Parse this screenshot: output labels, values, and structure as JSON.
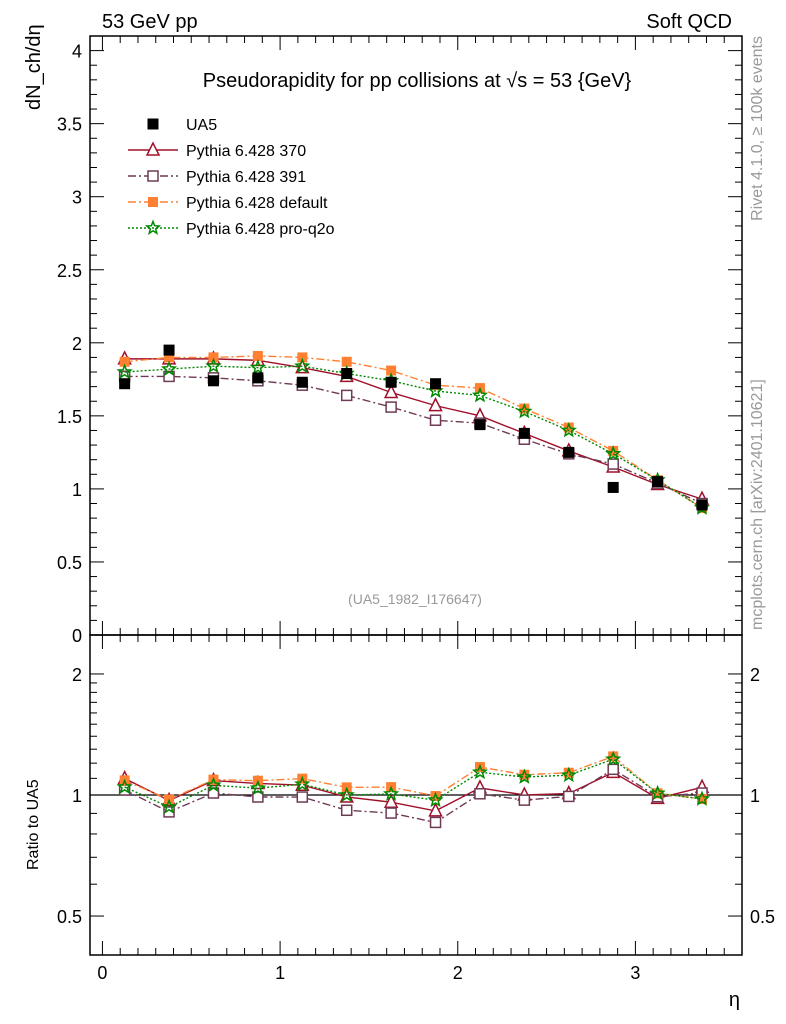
{
  "header": {
    "left": "53 GeV pp",
    "right": "Soft QCD"
  },
  "side_labels": {
    "rivet": "Rivet 4.1.0, ≥ 100k events",
    "mcplots": "mcplots.cern.ch [arXiv:2401.10621]"
  },
  "chart_data": {
    "type": "scatter",
    "title": "Pseudorapidity for pp collisions at √s = 53 {GeV}",
    "watermark": "(UA5_1982_I176647)",
    "xlabel": "η",
    "ylabel": "dN_ch/dη",
    "ratio_ylabel": "Ratio to UA5",
    "xlim": [
      -0.07,
      3.6
    ],
    "ylim": [
      0,
      4.1
    ],
    "ratio_ylim": [
      0.4,
      2.5
    ],
    "ratio_scale": "log",
    "x_ticks": [
      "0",
      "1",
      "2",
      "3"
    ],
    "y_ticks": [
      "0",
      "0.5",
      "1",
      "1.5",
      "2",
      "2.5",
      "3",
      "3.5",
      "4"
    ],
    "ratio_ticks": [
      "0.5",
      "1",
      "2"
    ],
    "legend_position": "top-left",
    "x": [
      0.125,
      0.375,
      0.625,
      0.875,
      1.125,
      1.375,
      1.625,
      1.875,
      2.125,
      2.375,
      2.625,
      2.875,
      3.125,
      3.375
    ],
    "data": {
      "name": "UA5",
      "color": "#000000",
      "values": [
        1.72,
        1.95,
        1.74,
        1.76,
        1.73,
        1.79,
        1.73,
        1.72,
        1.44,
        1.38,
        1.25,
        1.01,
        1.05,
        0.89
      ]
    },
    "series": [
      {
        "name": "Pythia 6.428 370",
        "color": "#a0102a",
        "marker": "triangle-open",
        "line": "solid",
        "values": [
          1.89,
          1.89,
          1.89,
          1.88,
          1.83,
          1.77,
          1.66,
          1.57,
          1.5,
          1.38,
          1.26,
          1.15,
          1.03,
          0.93
        ]
      },
      {
        "name": "Pythia 6.428 391",
        "color": "#6e3a55",
        "marker": "square-open",
        "line": "dashdot",
        "values": [
          1.77,
          1.77,
          1.76,
          1.74,
          1.71,
          1.64,
          1.56,
          1.47,
          1.45,
          1.34,
          1.24,
          1.17,
          1.04,
          0.9
        ]
      },
      {
        "name": "Pythia 6.428 default",
        "color": "#ff8030",
        "marker": "square-filled",
        "line": "dashdot",
        "values": [
          1.87,
          1.9,
          1.9,
          1.91,
          1.9,
          1.87,
          1.81,
          1.71,
          1.69,
          1.55,
          1.42,
          1.26,
          1.06,
          0.87
        ]
      },
      {
        "name": "Pythia 6.428 pro-q2o",
        "color": "#008800",
        "marker": "star",
        "line": "dotted",
        "values": [
          1.8,
          1.82,
          1.84,
          1.83,
          1.84,
          1.79,
          1.74,
          1.67,
          1.64,
          1.53,
          1.4,
          1.24,
          1.06,
          0.87
        ]
      }
    ]
  }
}
